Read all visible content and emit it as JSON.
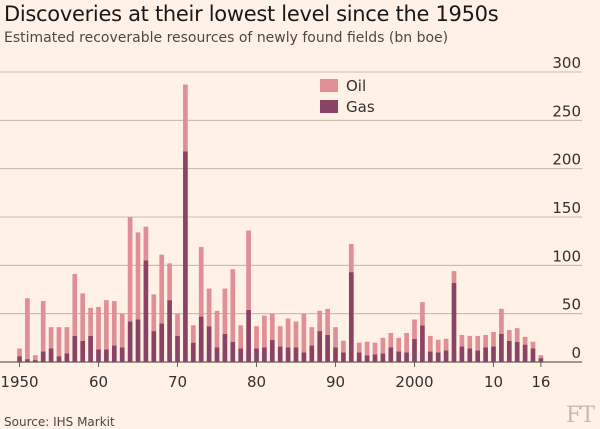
{
  "title": "Discoveries at their lowest level since the 1950s",
  "subtitle": "Estimated recoverable resources of newly found fields (bn boe)",
  "source": "Source: IHS Markit",
  "logo": "FT",
  "colors": {
    "oil": "#df8f95",
    "gas": "#8a4365",
    "grid": "#b7aba1",
    "text": "#33302e",
    "background": "#fff1e5"
  },
  "chart_data": {
    "type": "bar",
    "stacked": true,
    "title": "Discoveries at their lowest level since the 1950s",
    "subtitle": "Estimated recoverable resources of newly found fields (bn boe)",
    "xlabel": "",
    "ylabel": "",
    "ylim": [
      0,
      300
    ],
    "yticks": [
      0,
      50,
      100,
      150,
      200,
      250,
      300
    ],
    "y_axis_position": "right",
    "grid": true,
    "legend_position": "top-center",
    "x": [
      1950,
      1951,
      1952,
      1953,
      1954,
      1955,
      1956,
      1957,
      1958,
      1959,
      1960,
      1961,
      1962,
      1963,
      1964,
      1965,
      1966,
      1967,
      1968,
      1969,
      1970,
      1971,
      1972,
      1973,
      1974,
      1975,
      1976,
      1977,
      1978,
      1979,
      1980,
      1981,
      1982,
      1983,
      1984,
      1985,
      1986,
      1987,
      1988,
      1989,
      1990,
      1991,
      1992,
      1993,
      1994,
      1995,
      1996,
      1997,
      1998,
      1999,
      2000,
      2001,
      2002,
      2003,
      2004,
      2005,
      2006,
      2007,
      2008,
      2009,
      2010,
      2011,
      2012,
      2013,
      2014,
      2015,
      2016
    ],
    "x_tick_labels": [
      {
        "x": 1950,
        "label": "1950"
      },
      {
        "x": 1960,
        "label": "60"
      },
      {
        "x": 1970,
        "label": "70"
      },
      {
        "x": 1980,
        "label": "80"
      },
      {
        "x": 1990,
        "label": "90"
      },
      {
        "x": 2000,
        "label": "2000"
      },
      {
        "x": 2010,
        "label": "10"
      },
      {
        "x": 2016,
        "label": "16"
      }
    ],
    "series": [
      {
        "name": "Gas",
        "color": "#8a4365",
        "values": [
          6,
          3,
          2,
          11,
          14,
          6,
          9,
          27,
          22,
          27,
          13,
          13,
          17,
          15,
          42,
          44,
          105,
          32,
          40,
          64,
          27,
          218,
          20,
          47,
          37,
          15,
          29,
          21,
          14,
          54,
          14,
          15,
          23,
          16,
          15,
          15,
          10,
          17,
          32,
          28,
          15,
          10,
          93,
          10,
          7,
          8,
          9,
          15,
          11,
          10,
          24,
          38,
          11,
          10,
          12,
          82,
          16,
          14,
          12,
          15,
          16,
          29,
          22,
          21,
          18,
          14,
          4
        ]
      },
      {
        "name": "Oil",
        "color": "#df8f95",
        "values": [
          8,
          63,
          5,
          52,
          22,
          30,
          27,
          64,
          49,
          29,
          44,
          51,
          46,
          35,
          108,
          90,
          35,
          38,
          71,
          38,
          23,
          69,
          18,
          72,
          39,
          38,
          47,
          75,
          24,
          82,
          23,
          33,
          27,
          21,
          30,
          27,
          40,
          19,
          21,
          27,
          21,
          12,
          29,
          10,
          14,
          12,
          16,
          15,
          14,
          20,
          20,
          24,
          16,
          13,
          12,
          12,
          12,
          13,
          15,
          13,
          15,
          26,
          11,
          14,
          8,
          7,
          3
        ]
      }
    ]
  }
}
